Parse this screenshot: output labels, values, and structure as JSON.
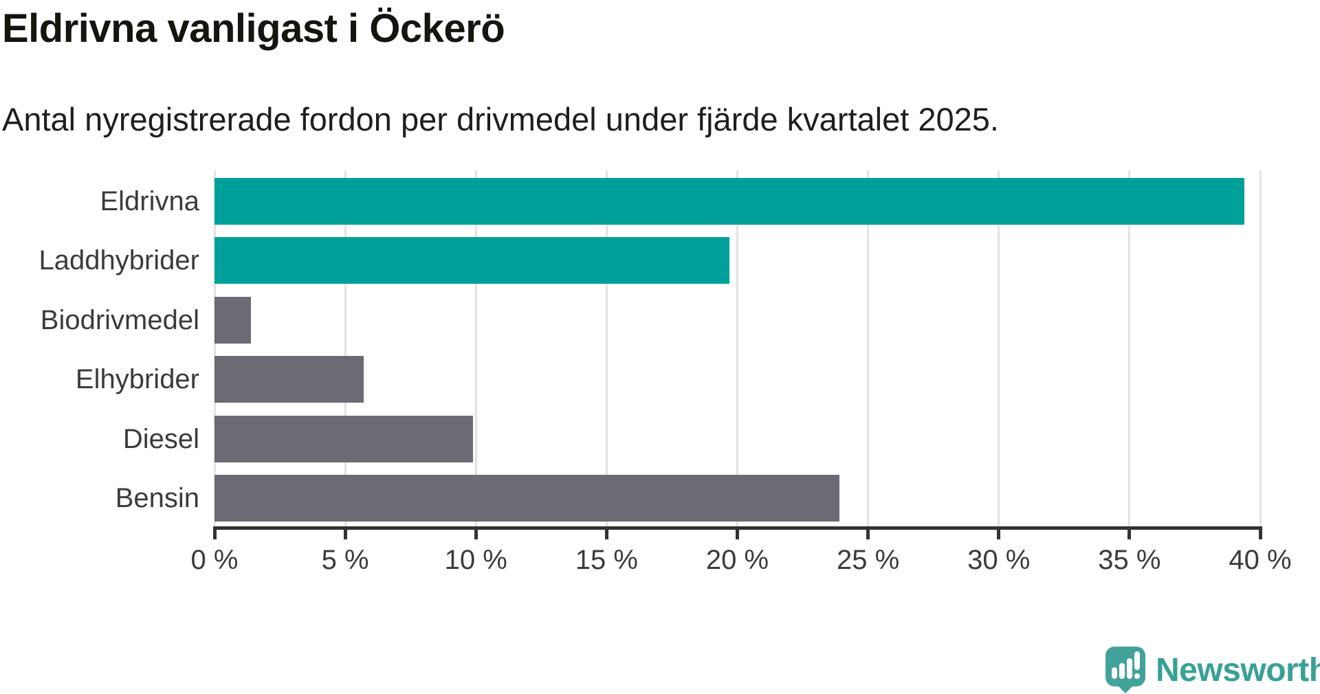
{
  "header": {
    "title": "Eldrivna vanligast i Öckerö",
    "subtitle": "Antal nyregistrerade fordon per drivmedel under fjärde kvartalet 2025."
  },
  "chart_data": {
    "type": "bar",
    "orientation": "horizontal",
    "title": "Eldrivna vanligast i Öckerö",
    "subtitle": "Antal nyregistrerade fordon per drivmedel under fjärde kvartalet 2025.",
    "categories": [
      "Eldrivna",
      "Laddhybrider",
      "Biodrivmedel",
      "Elhybrider",
      "Diesel",
      "Bensin"
    ],
    "values": [
      39.4,
      19.7,
      1.4,
      5.7,
      9.9,
      23.9
    ],
    "unit": "%",
    "xlabel": "",
    "ylabel": "",
    "xlim": [
      0,
      40
    ],
    "x_ticks": [
      "0 %",
      "5 %",
      "10 %",
      "15 %",
      "20 %",
      "25 %",
      "30 %",
      "35 %",
      "40 %"
    ],
    "grid": true,
    "legend": false,
    "bar_colors": [
      "#00a09a",
      "#00a09a",
      "#6c6a72",
      "#6c6a72",
      "#6c6a72",
      "#6c6a72"
    ],
    "highlight_color": "#00a09a",
    "default_color": "#6c6a72",
    "gridline_color": "#e2e2e2",
    "axis_color": "#333333",
    "label_color": "#3b3b3b"
  },
  "branding": {
    "logo_text": "Newsworthy",
    "logo_color": "#38a096",
    "logo_icon": "newsworthy-speech-bubble-chart-icon"
  }
}
